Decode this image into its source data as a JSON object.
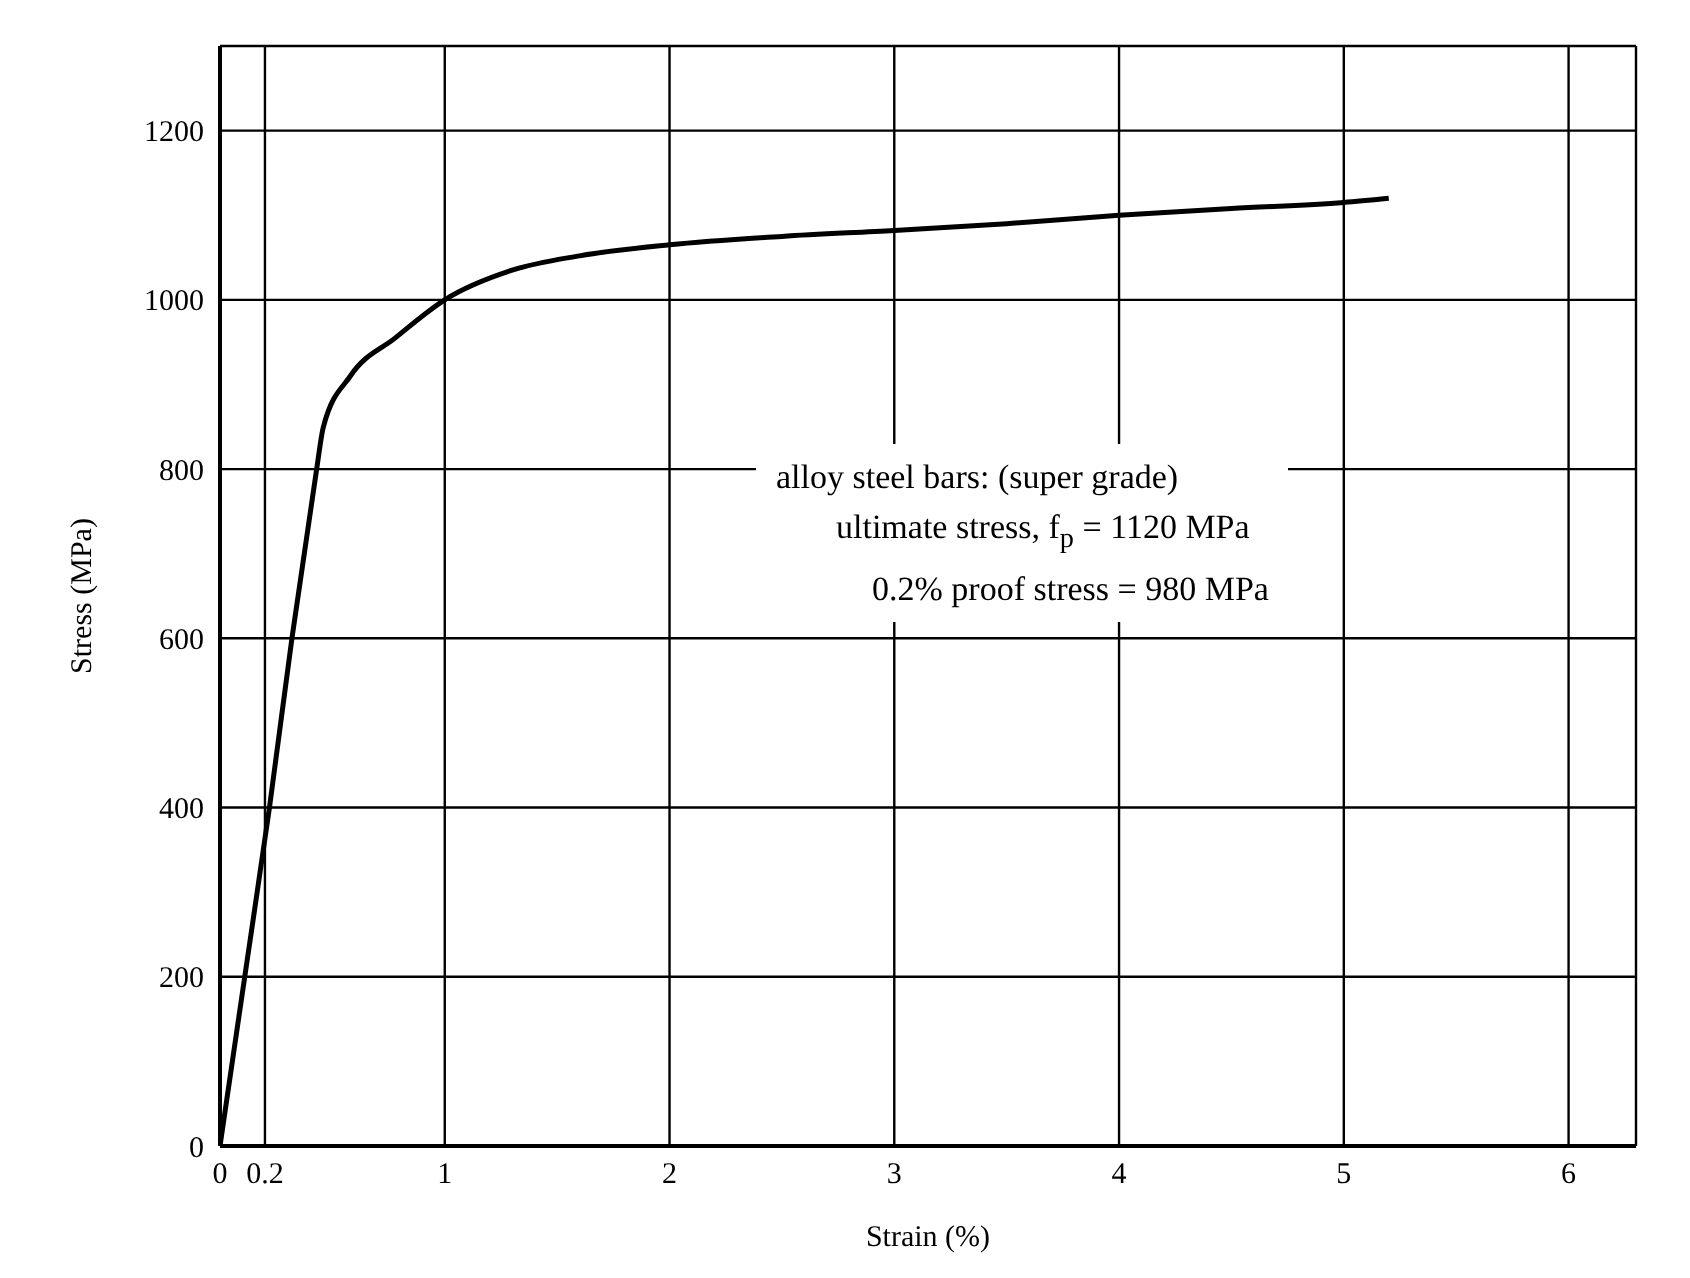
{
  "chart_data": {
    "type": "line",
    "xlabel": "Strain (%)",
    "ylabel": "Stress (MPa)",
    "x": [
      0,
      0.11,
      0.22,
      0.32,
      0.43,
      0.46,
      0.58,
      0.78,
      1.0,
      1.3,
      1.6,
      2.0,
      2.5,
      3.0,
      3.5,
      4.0,
      4.5,
      5.0,
      5.2
    ],
    "series": [
      {
        "color": "#000000",
        "values": [
          0,
          200,
          400,
          600,
          800,
          850,
          910,
          955,
          1000,
          1035,
          1052,
          1065,
          1075,
          1082,
          1090,
          1100,
          1108,
          1115,
          1120
        ]
      }
    ],
    "xlim": [
      0,
      6.3
    ],
    "xticks": [
      0,
      0.2,
      1,
      2,
      3,
      4,
      5,
      6
    ],
    "ylim": [
      0,
      1300
    ],
    "yticks": [
      0,
      200,
      400,
      600,
      800,
      1000,
      1200
    ],
    "grid": true,
    "marker": "none",
    "line_style": "solid",
    "annotations": [
      "alloy steel bars: (super grade)",
      "ultimate stress, f$_{p}$ = 1120 MPa",
      "0.2% proof stress = 980 MPa"
    ]
  }
}
